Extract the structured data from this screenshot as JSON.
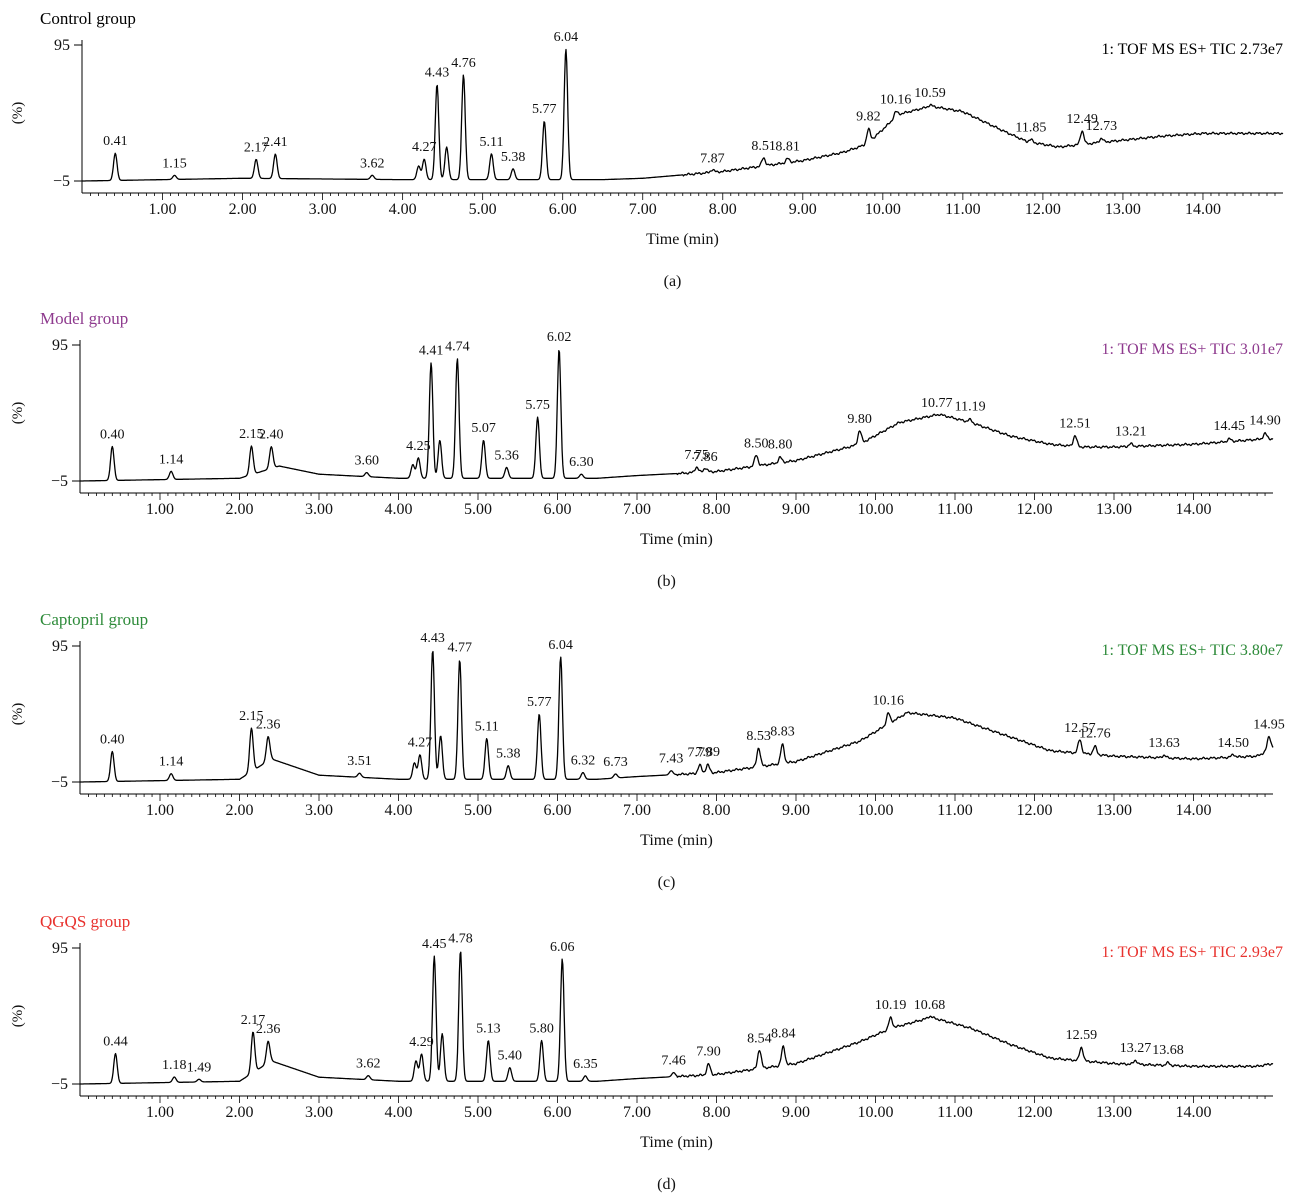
{
  "chart_data": [
    {
      "type": "line",
      "panel_label": "(a)",
      "group_label": "Control group",
      "group_color": "#000000",
      "instrument_label": "1: TOF MS ES+ TIC 2.73e7",
      "xlabel": "Time (min)",
      "ylabel": "(%)",
      "xlim": [
        0,
        15
      ],
      "ylim": [
        -5,
        95
      ],
      "y_tick_labels": [
        "95",
        "−5"
      ],
      "x_tick_labels": [
        "1.00",
        "2.00",
        "3.00",
        "4.00",
        "5.00",
        "6.00",
        "7.00",
        "8.00",
        "9.00",
        "10.00",
        "11.00",
        "12.00",
        "13.00",
        "14.00"
      ],
      "baseline": [
        [
          0,
          -5
        ],
        [
          2.0,
          -3
        ],
        [
          4.0,
          -4
        ],
        [
          6.5,
          -4
        ],
        [
          7.0,
          -3
        ],
        [
          8.0,
          2
        ],
        [
          8.5,
          6
        ],
        [
          9.0,
          10
        ],
        [
          9.5,
          16
        ],
        [
          9.8,
          22
        ],
        [
          10.2,
          44
        ],
        [
          10.6,
          50
        ],
        [
          11.0,
          46
        ],
        [
          11.5,
          32
        ],
        [
          11.8,
          24
        ],
        [
          12.2,
          20
        ],
        [
          12.5,
          22
        ],
        [
          13.0,
          25
        ],
        [
          13.5,
          28
        ],
        [
          14.0,
          30
        ],
        [
          15,
          30
        ]
      ],
      "peaks": [
        {
          "rt": 0.41,
          "height": 20,
          "label": "0.41"
        },
        {
          "rt": 1.15,
          "height": 3,
          "label": "1.15"
        },
        {
          "rt": 2.17,
          "height": 14,
          "label": "2.17"
        },
        {
          "rt": 2.41,
          "height": 18,
          "label": "2.41"
        },
        {
          "rt": 3.62,
          "height": 3,
          "label": "3.62"
        },
        {
          "rt": 4.2,
          "height": 10,
          "label": ""
        },
        {
          "rt": 4.27,
          "height": 15,
          "label": "4.27"
        },
        {
          "rt": 4.43,
          "height": 70,
          "label": "4.43"
        },
        {
          "rt": 4.55,
          "height": 24,
          "label": ""
        },
        {
          "rt": 4.76,
          "height": 77,
          "label": "4.76"
        },
        {
          "rt": 5.11,
          "height": 19,
          "label": "5.11"
        },
        {
          "rt": 5.38,
          "height": 8,
          "label": "5.38"
        },
        {
          "rt": 5.77,
          "height": 43,
          "label": "5.77"
        },
        {
          "rt": 6.04,
          "height": 96,
          "label": "6.04"
        },
        {
          "rt": 7.87,
          "height": 2,
          "label": "7.87"
        },
        {
          "rt": 8.51,
          "height": 6,
          "label": "8.51"
        },
        {
          "rt": 8.81,
          "height": 3,
          "label": "8.81"
        },
        {
          "rt": 9.82,
          "height": 10,
          "label": "9.82"
        },
        {
          "rt": 10.16,
          "height": 4,
          "label": "10.16"
        },
        {
          "rt": 10.59,
          "height": 1,
          "label": "10.59"
        },
        {
          "rt": 11.85,
          "height": 2,
          "label": "11.85"
        },
        {
          "rt": 12.49,
          "height": 10,
          "label": "12.49"
        },
        {
          "rt": 12.73,
          "height": 3,
          "label": "12.73"
        }
      ]
    },
    {
      "type": "line",
      "panel_label": "(b)",
      "group_label": "Model group",
      "group_color": "#8e3a8e",
      "instrument_label": "1: TOF MS ES+ TIC 3.01e7",
      "xlabel": "Time (min)",
      "ylabel": "(%)",
      "xlim": [
        0,
        15
      ],
      "ylim": [
        -5,
        95
      ],
      "y_tick_labels": [
        "95",
        "−5"
      ],
      "x_tick_labels": [
        "1.00",
        "2.00",
        "3.00",
        "4.00",
        "5.00",
        "6.00",
        "7.00",
        "8.00",
        "9.00",
        "10.00",
        "11.00",
        "12.00",
        "13.00",
        "14.00"
      ],
      "baseline": [
        [
          0,
          -5
        ],
        [
          2.0,
          -3
        ],
        [
          2.5,
          6
        ],
        [
          3.0,
          0
        ],
        [
          4.0,
          -3
        ],
        [
          6.5,
          -3
        ],
        [
          7.0,
          -1
        ],
        [
          8.0,
          2
        ],
        [
          9.0,
          10
        ],
        [
          9.8,
          22
        ],
        [
          10.3,
          38
        ],
        [
          10.8,
          44
        ],
        [
          11.2,
          38
        ],
        [
          11.7,
          28
        ],
        [
          12.2,
          22
        ],
        [
          12.6,
          20
        ],
        [
          13.0,
          20
        ],
        [
          14.0,
          22
        ],
        [
          14.9,
          26
        ],
        [
          15,
          26
        ]
      ],
      "peaks": [
        {
          "rt": 0.4,
          "height": 25,
          "label": "0.40"
        },
        {
          "rt": 1.14,
          "height": 6,
          "label": "1.14"
        },
        {
          "rt": 2.15,
          "height": 21,
          "label": "2.15"
        },
        {
          "rt": 2.4,
          "height": 16,
          "label": "2.40"
        },
        {
          "rt": 3.6,
          "height": 3,
          "label": "3.60"
        },
        {
          "rt": 4.18,
          "height": 10,
          "label": ""
        },
        {
          "rt": 4.25,
          "height": 15,
          "label": "4.25"
        },
        {
          "rt": 4.41,
          "height": 85,
          "label": "4.41"
        },
        {
          "rt": 4.52,
          "height": 28,
          "label": ""
        },
        {
          "rt": 4.74,
          "height": 88,
          "label": "4.74"
        },
        {
          "rt": 5.07,
          "height": 28,
          "label": "5.07"
        },
        {
          "rt": 5.36,
          "height": 8,
          "label": "5.36"
        },
        {
          "rt": 5.75,
          "height": 45,
          "label": "5.75"
        },
        {
          "rt": 6.02,
          "height": 95,
          "label": "6.02"
        },
        {
          "rt": 6.3,
          "height": 3,
          "label": "6.30"
        },
        {
          "rt": 7.75,
          "height": 4,
          "label": "7.75"
        },
        {
          "rt": 7.86,
          "height": 3,
          "label": "7.86"
        },
        {
          "rt": 8.5,
          "height": 8,
          "label": "8.50"
        },
        {
          "rt": 8.8,
          "height": 4,
          "label": "8.80"
        },
        {
          "rt": 9.8,
          "height": 10,
          "label": "9.80"
        },
        {
          "rt": 10.77,
          "height": 0,
          "label": "10.77"
        },
        {
          "rt": 11.19,
          "height": 2,
          "label": "11.19"
        },
        {
          "rt": 12.51,
          "height": 8,
          "label": "12.51"
        },
        {
          "rt": 13.21,
          "height": 2,
          "label": "13.21"
        },
        {
          "rt": 14.45,
          "height": 2,
          "label": "14.45"
        },
        {
          "rt": 14.9,
          "height": 4,
          "label": "14.90"
        }
      ]
    },
    {
      "type": "line",
      "panel_label": "(c)",
      "group_label": "Captopril group",
      "group_color": "#2e8b3a",
      "instrument_label": "1: TOF MS ES+ TIC 3.80e7",
      "xlabel": "Time (min)",
      "ylabel": "(%)",
      "xlim": [
        0,
        15
      ],
      "ylim": [
        -5,
        95
      ],
      "y_tick_labels": [
        "95",
        "−5"
      ],
      "x_tick_labels": [
        "1.00",
        "2.00",
        "3.00",
        "4.00",
        "5.00",
        "6.00",
        "7.00",
        "8.00",
        "9.00",
        "10.00",
        "11.00",
        "12.00",
        "13.00",
        "14.00"
      ],
      "baseline": [
        [
          0,
          -5
        ],
        [
          2.0,
          -3
        ],
        [
          2.4,
          12
        ],
        [
          3.0,
          0
        ],
        [
          4.0,
          -3
        ],
        [
          6.5,
          -3
        ],
        [
          7.0,
          -1
        ],
        [
          8.0,
          2
        ],
        [
          9.0,
          10
        ],
        [
          9.8,
          25
        ],
        [
          10.4,
          46
        ],
        [
          11.0,
          42
        ],
        [
          11.6,
          30
        ],
        [
          12.2,
          18
        ],
        [
          12.6,
          16
        ],
        [
          13.0,
          14
        ],
        [
          14.0,
          12
        ],
        [
          14.8,
          14
        ],
        [
          15,
          20
        ]
      ],
      "peaks": [
        {
          "rt": 0.4,
          "height": 22,
          "label": "0.40"
        },
        {
          "rt": 1.14,
          "height": 5,
          "label": "1.14"
        },
        {
          "rt": 2.15,
          "height": 32,
          "label": "2.15"
        },
        {
          "rt": 2.36,
          "height": 18,
          "label": "2.36"
        },
        {
          "rt": 3.51,
          "height": 3,
          "label": "3.51"
        },
        {
          "rt": 4.2,
          "height": 12,
          "label": ""
        },
        {
          "rt": 4.27,
          "height": 18,
          "label": "4.27"
        },
        {
          "rt": 4.43,
          "height": 95,
          "label": "4.43"
        },
        {
          "rt": 4.53,
          "height": 32,
          "label": ""
        },
        {
          "rt": 4.77,
          "height": 88,
          "label": "4.77"
        },
        {
          "rt": 5.11,
          "height": 30,
          "label": "5.11"
        },
        {
          "rt": 5.38,
          "height": 10,
          "label": "5.38"
        },
        {
          "rt": 5.77,
          "height": 48,
          "label": "5.77"
        },
        {
          "rt": 6.04,
          "height": 90,
          "label": "6.04"
        },
        {
          "rt": 6.32,
          "height": 5,
          "label": "6.32"
        },
        {
          "rt": 6.73,
          "height": 3,
          "label": "6.73"
        },
        {
          "rt": 7.43,
          "height": 3,
          "label": "7.43"
        },
        {
          "rt": 7.79,
          "height": 6,
          "label": "7.79"
        },
        {
          "rt": 7.89,
          "height": 6,
          "label": "7.89"
        },
        {
          "rt": 8.53,
          "height": 14,
          "label": "8.53"
        },
        {
          "rt": 8.83,
          "height": 14,
          "label": "8.83"
        },
        {
          "rt": 10.16,
          "height": 8,
          "label": "10.16"
        },
        {
          "rt": 12.57,
          "height": 10,
          "label": "12.57"
        },
        {
          "rt": 12.76,
          "height": 6,
          "label": "12.76"
        },
        {
          "rt": 13.63,
          "height": 2,
          "label": "13.63"
        },
        {
          "rt": 14.5,
          "height": 2,
          "label": "14.50"
        },
        {
          "rt": 14.95,
          "height": 10,
          "label": "14.95"
        }
      ]
    },
    {
      "type": "line",
      "panel_label": "(d)",
      "group_label": "QGQS group",
      "group_color": "#e8322e",
      "instrument_label": "1: TOF MS ES+ TIC 2.93e7",
      "xlabel": "Time (min)",
      "ylabel": "(%)",
      "xlim": [
        0,
        15
      ],
      "ylim": [
        -5,
        95
      ],
      "y_tick_labels": [
        "95",
        "−5"
      ],
      "x_tick_labels": [
        "1.00",
        "2.00",
        "3.00",
        "4.00",
        "5.00",
        "6.00",
        "7.00",
        "8.00",
        "9.00",
        "10.00",
        "11.00",
        "12.00",
        "13.00",
        "14.00"
      ],
      "baseline": [
        [
          0,
          -5
        ],
        [
          2.0,
          -3
        ],
        [
          2.4,
          12
        ],
        [
          3.0,
          0
        ],
        [
          4.0,
          -3
        ],
        [
          6.5,
          -3
        ],
        [
          7.0,
          -1
        ],
        [
          8.0,
          2
        ],
        [
          9.0,
          10
        ],
        [
          9.8,
          26
        ],
        [
          10.2,
          36
        ],
        [
          10.7,
          44
        ],
        [
          11.2,
          36
        ],
        [
          11.7,
          24
        ],
        [
          12.2,
          14
        ],
        [
          12.6,
          12
        ],
        [
          13.0,
          10
        ],
        [
          14.0,
          8
        ],
        [
          14.8,
          8
        ],
        [
          15,
          10
        ]
      ],
      "peaks": [
        {
          "rt": 0.44,
          "height": 22,
          "label": "0.44"
        },
        {
          "rt": 1.18,
          "height": 4,
          "label": "1.18"
        },
        {
          "rt": 1.49,
          "height": 2,
          "label": "1.49"
        },
        {
          "rt": 2.17,
          "height": 30,
          "label": "2.17"
        },
        {
          "rt": 2.36,
          "height": 16,
          "label": "2.36"
        },
        {
          "rt": 3.62,
          "height": 3,
          "label": "3.62"
        },
        {
          "rt": 4.22,
          "height": 15,
          "label": ""
        },
        {
          "rt": 4.29,
          "height": 20,
          "label": "4.29"
        },
        {
          "rt": 4.45,
          "height": 92,
          "label": "4.45"
        },
        {
          "rt": 4.55,
          "height": 35,
          "label": ""
        },
        {
          "rt": 4.78,
          "height": 96,
          "label": "4.78"
        },
        {
          "rt": 5.13,
          "height": 30,
          "label": "5.13"
        },
        {
          "rt": 5.4,
          "height": 10,
          "label": "5.40"
        },
        {
          "rt": 5.8,
          "height": 30,
          "label": "5.80"
        },
        {
          "rt": 6.06,
          "height": 90,
          "label": "6.06"
        },
        {
          "rt": 6.35,
          "height": 4,
          "label": "6.35"
        },
        {
          "rt": 7.46,
          "height": 3,
          "label": "7.46"
        },
        {
          "rt": 7.9,
          "height": 8,
          "label": "7.90"
        },
        {
          "rt": 8.54,
          "height": 14,
          "label": "8.54"
        },
        {
          "rt": 8.84,
          "height": 14,
          "label": "8.84"
        },
        {
          "rt": 10.19,
          "height": 8,
          "label": "10.19"
        },
        {
          "rt": 10.68,
          "height": 1,
          "label": "10.68"
        },
        {
          "rt": 12.59,
          "height": 10,
          "label": "12.59"
        },
        {
          "rt": 13.27,
          "height": 3,
          "label": "13.27"
        },
        {
          "rt": 13.68,
          "height": 2,
          "label": "13.68"
        }
      ]
    }
  ]
}
